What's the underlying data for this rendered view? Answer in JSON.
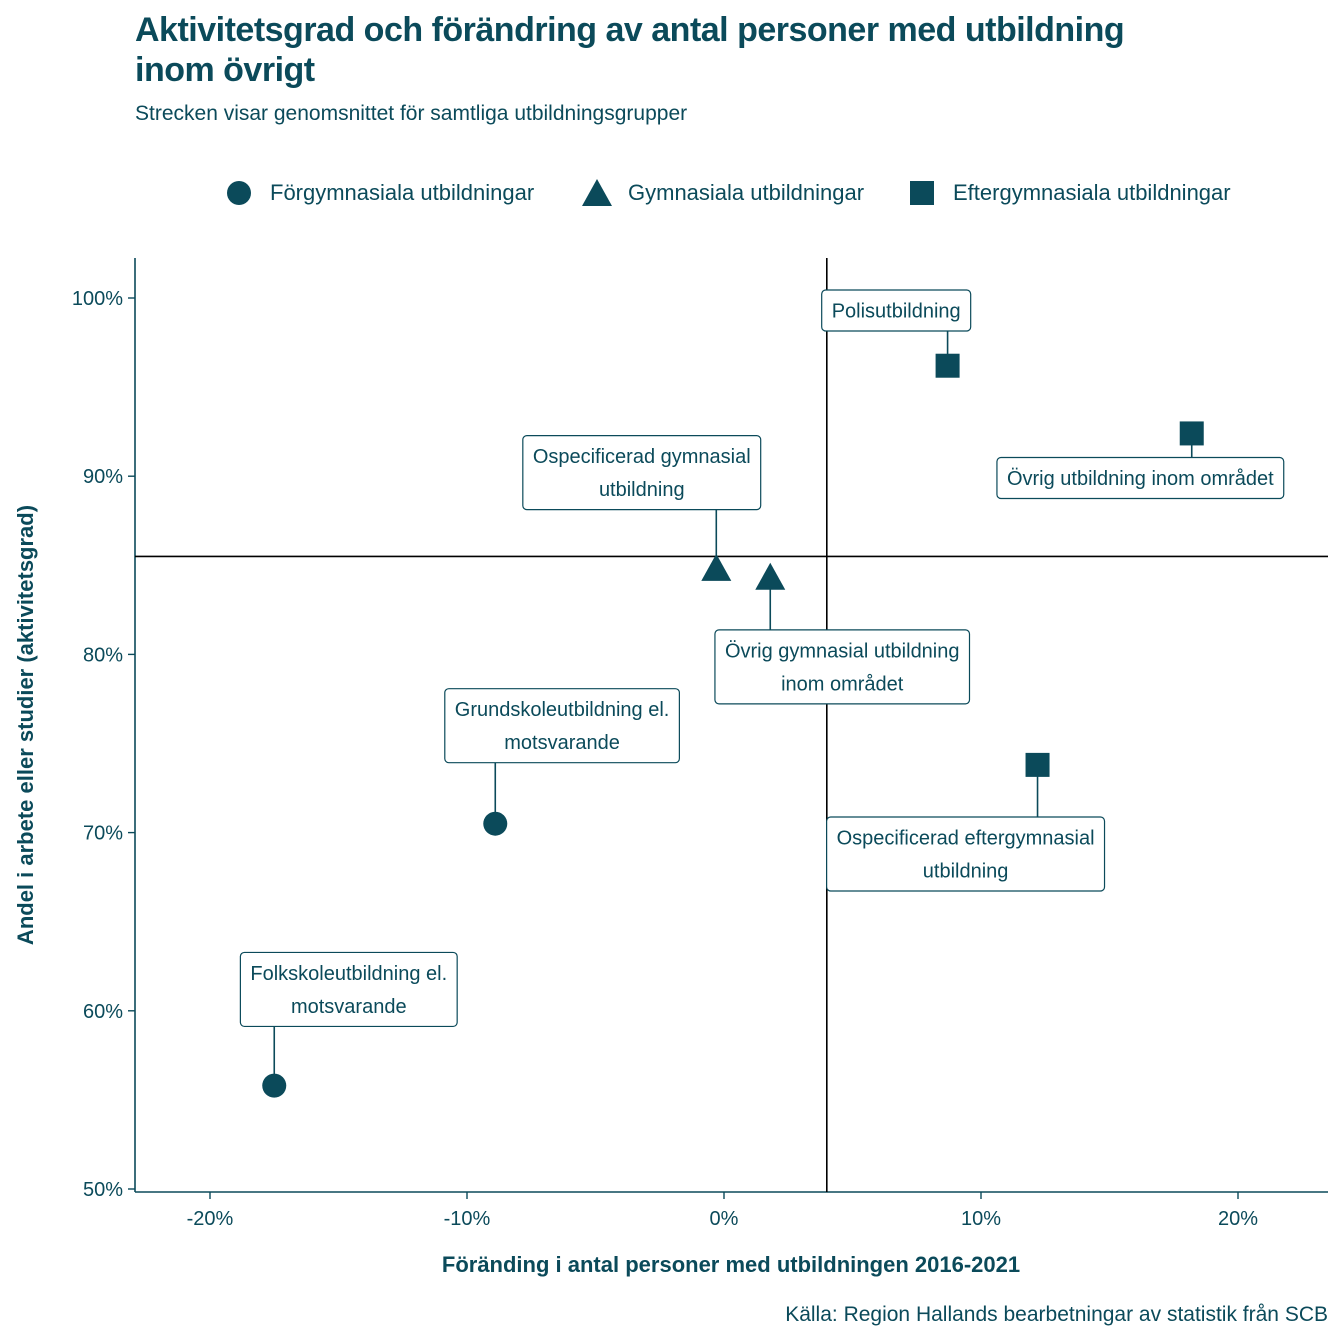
{
  "chart_data": {
    "type": "scatter",
    "title": "Aktivitetsgrad och förändring av antal personer med utbildning inom övrigt",
    "subtitle": "Strecken visar genomsnittet för samtliga utbildningsgrupper",
    "xlabel": "Föränding i antal personer med utbildningen 2016-2021",
    "ylabel": "Andel i arbete eller studier (aktivitetsgrad)",
    "source": "Källa: Region Hallands bearbetningar av statistik från SCB",
    "xlim": [
      -23,
      23.5
    ],
    "ylim": [
      50,
      102
    ],
    "x_ticks": [
      {
        "value": -20,
        "label": "-20%"
      },
      {
        "value": -10,
        "label": "-10%"
      },
      {
        "value": 0,
        "label": "0%"
      },
      {
        "value": 10,
        "label": "10%"
      },
      {
        "value": 20,
        "label": "20%"
      }
    ],
    "y_ticks": [
      {
        "value": 50,
        "label": "50%"
      },
      {
        "value": 60,
        "label": "60%"
      },
      {
        "value": 70,
        "label": "70%"
      },
      {
        "value": 80,
        "label": "80%"
      },
      {
        "value": 90,
        "label": "90%"
      },
      {
        "value": 100,
        "label": "100%"
      }
    ],
    "reference_lines": {
      "x": 4.0,
      "y": 85.5
    },
    "legend_position": "top",
    "grid": false,
    "color": "#0b4a5a",
    "series": [
      {
        "name": "Förgymnasiala utbildningar",
        "shape": "circle",
        "points": [
          {
            "x": -17.5,
            "y": 55.8,
            "label": [
              "Folkskoleutbildning el.",
              "motsvarande"
            ],
            "label_anchor": {
              "x": -14.6,
              "y": 61.2
            }
          },
          {
            "x": -8.9,
            "y": 70.5,
            "label": [
              "Grundskoleutbildning el.",
              "motsvarande"
            ],
            "label_anchor": {
              "x": -6.3,
              "y": 76.0
            }
          }
        ]
      },
      {
        "name": "Gymnasiala utbildningar",
        "shape": "triangle",
        "points": [
          {
            "x": -0.3,
            "y": 84.8,
            "label": [
              "Ospecificerad gymnasial",
              "utbildning"
            ],
            "label_anchor": {
              "x": -3.2,
              "y": 90.2
            }
          },
          {
            "x": 1.8,
            "y": 84.3,
            "label": [
              "Övrig gymnasial utbildning",
              "inom området"
            ],
            "label_anchor": {
              "x": 4.6,
              "y": 79.3
            }
          }
        ]
      },
      {
        "name": "Eftergymnasiala utbildningar",
        "shape": "square",
        "points": [
          {
            "x": 8.7,
            "y": 96.2,
            "label": [
              "Polisutbildning"
            ],
            "label_anchor": {
              "x": 6.7,
              "y": 99.3
            }
          },
          {
            "x": 18.2,
            "y": 92.4,
            "label": [
              "Övrig utbildning inom området"
            ],
            "label_anchor": {
              "x": 16.2,
              "y": 89.9
            }
          },
          {
            "x": 12.2,
            "y": 73.8,
            "label": [
              "Ospecificerad eftergymnasial",
              "utbildning"
            ],
            "label_anchor": {
              "x": 9.4,
              "y": 68.8
            }
          }
        ]
      }
    ]
  }
}
